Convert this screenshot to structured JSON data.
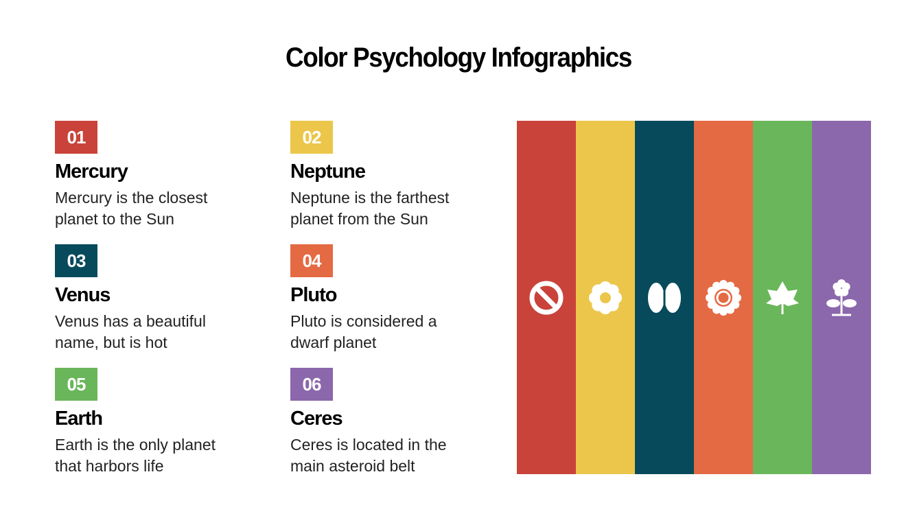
{
  "header": {
    "title": "Color Psychology Infographics"
  },
  "items": [
    {
      "number": "01",
      "name": "Mercury",
      "description": "Mercury is the closest planet to the Sun",
      "color": "#c9433a"
    },
    {
      "number": "02",
      "name": "Neptune",
      "description": "Neptune is the farthest planet from the Sun",
      "color": "#ecc64b"
    },
    {
      "number": "03",
      "name": "Venus",
      "description": "Venus has a beautiful name, but is hot",
      "color": "#064a5b"
    },
    {
      "number": "04",
      "name": "Pluto",
      "description": "Pluto is considered a dwarf planet",
      "color": "#e46a43"
    },
    {
      "number": "05",
      "name": "Earth",
      "description": "Earth is the only planet that harbors life",
      "color": "#6ab65a"
    },
    {
      "number": "06",
      "name": "Ceres",
      "description": "Ceres is located in the main asteroid belt",
      "color": "#8b67ab"
    }
  ]
}
